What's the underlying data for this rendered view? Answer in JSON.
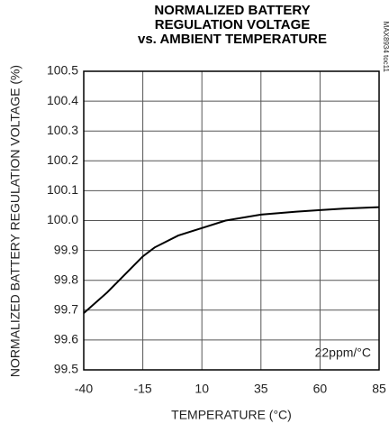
{
  "chart_data": {
    "type": "line",
    "title": [
      "NORMALIZED BATTERY",
      "REGULATION VOLTAGE",
      "vs. AMBIENT TEMPERATURE"
    ],
    "xlabel": "TEMPERATURE (°C)",
    "ylabel": "NORMALIZED BATTERY REGULATION VOLTAGE (%)",
    "annotation": "22ppm/°C",
    "side_note": "MAX8934 toc11",
    "x": [
      -40,
      -30,
      -20,
      -15,
      -10,
      0,
      10,
      20,
      35,
      50,
      60,
      70,
      85
    ],
    "series": [
      {
        "name": "regulation voltage",
        "color": "#000000",
        "values": [
          99.69,
          99.76,
          99.84,
          99.88,
          99.91,
          99.95,
          99.975,
          100.0,
          100.02,
          100.03,
          100.035,
          100.04,
          100.045
        ]
      }
    ],
    "xlim": [
      -40,
      85
    ],
    "xticks": [
      -40,
      -15,
      10,
      35,
      60,
      85
    ],
    "ylim": [
      99.5,
      100.5
    ],
    "yticks": [
      99.5,
      99.6,
      99.7,
      99.8,
      99.9,
      {
        "value": 100,
        "label": "100.0"
      },
      100.1,
      100.2,
      100.3,
      100.4,
      100.5
    ],
    "grid": true
  }
}
